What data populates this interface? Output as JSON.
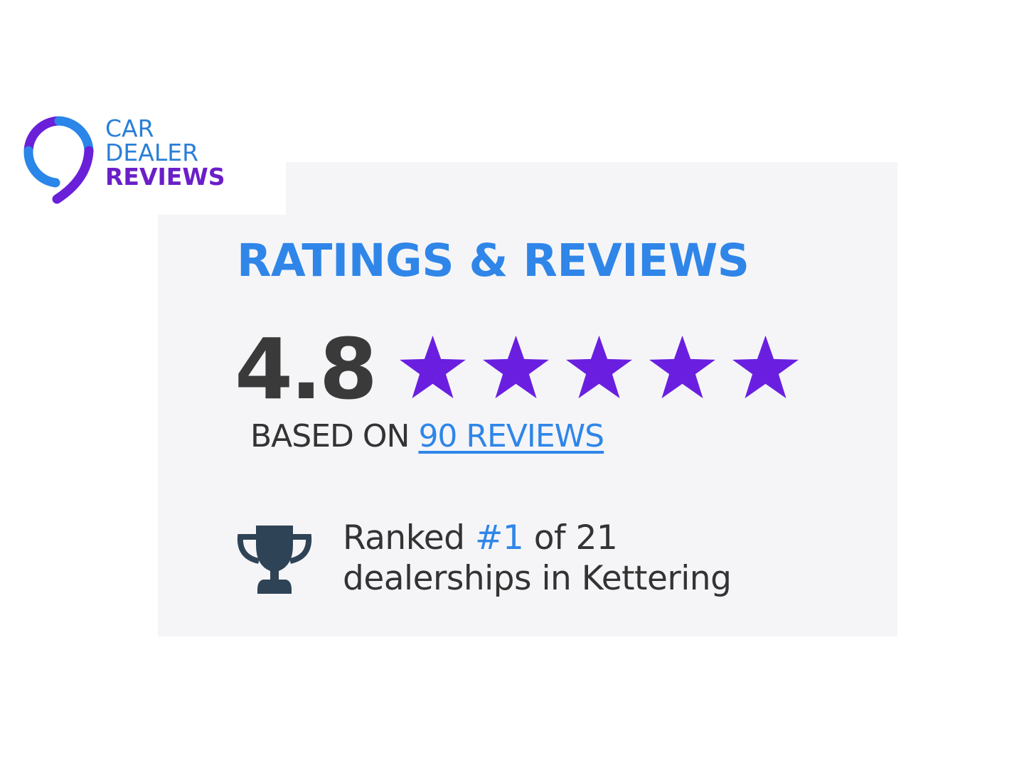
{
  "logo": {
    "line1": "CAR",
    "line2": "DEALER",
    "line3": "REVIEWS"
  },
  "widget": {
    "title": "RATINGS & REVIEWS",
    "rating": "4.8",
    "stars": 5,
    "based_on_label": "BASED ON",
    "reviews_link": "90 REVIEWS",
    "rank_prefix": "Ranked",
    "rank_value": "#1",
    "rank_suffix": "of 21",
    "rank_line2": "dealerships in Kettering",
    "icon": "trophy-icon"
  },
  "colors": {
    "accent_blue": "#2f86e8",
    "star_purple": "#6a1fe0",
    "text": "#333333",
    "card_bg": "#f5f5f8"
  }
}
